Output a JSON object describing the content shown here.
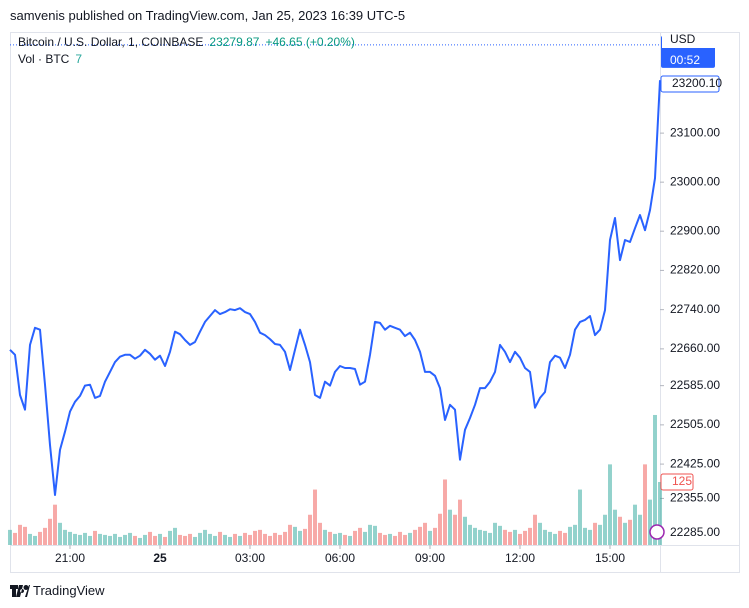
{
  "header": "samvenis published on TradingView.com, Jan 25, 2023 16:39 UTC-5",
  "footer": "TradingView",
  "chart_data": {
    "type": "line",
    "series": [
      {
        "name": "Bitcoin / U.S. Dollar, 1, COINBASE",
        "color": "#2962ff",
        "values": [
          22658,
          22648,
          22566,
          22536,
          22668,
          22703,
          22699,
          22587,
          22464,
          22362,
          22454,
          22491,
          22532,
          22552,
          22564,
          22585,
          22587,
          22560,
          22564,
          22593,
          22613,
          22633,
          22644,
          22648,
          22648,
          22640,
          22646,
          22658,
          22650,
          22638,
          22646,
          22625,
          22654,
          22695,
          22690,
          22678,
          22668,
          22674,
          22695,
          22715,
          22727,
          22739,
          22731,
          22735,
          22741,
          22739,
          22743,
          22735,
          22731,
          22715,
          22693,
          22688,
          22680,
          22670,
          22668,
          22654,
          22617,
          22658,
          22699,
          22668,
          22633,
          22566,
          22560,
          22593,
          22585,
          22613,
          22625,
          22621,
          22621,
          22619,
          22587,
          22593,
          22648,
          22715,
          22713,
          22699,
          22707,
          22703,
          22699,
          22686,
          22693,
          22678,
          22654,
          22613,
          22613,
          22605,
          22580,
          22515,
          22546,
          22536,
          22434,
          22495,
          22519,
          22546,
          22580,
          22580,
          22593,
          22613,
          22668,
          22654,
          22633,
          22654,
          22642,
          22621,
          22613,
          22540,
          22560,
          22572,
          22633,
          22646,
          22642,
          22621,
          22648,
          22699,
          22715,
          22719,
          22727,
          22688,
          22699,
          22739,
          22882,
          22927,
          22841,
          22882,
          22878,
          22906,
          22933,
          22902,
          22943,
          23008,
          23208
        ]
      }
    ],
    "x": [
      1140,
      1150,
      1160,
      1170,
      1180,
      1190,
      1200,
      1210,
      1220,
      1230,
      1240,
      1250,
      1260,
      1270,
      1280,
      1290,
      1300,
      1310,
      1320,
      1330,
      1340,
      1350,
      1360,
      1370,
      1380,
      1390,
      1400,
      1410,
      1420,
      1430,
      1440,
      1450,
      1460,
      1470,
      1480,
      1490,
      1500,
      1510,
      1520,
      1530,
      1540,
      1550,
      1560,
      1570,
      1580,
      1590,
      1600,
      1610,
      1620,
      1630,
      1640,
      1650,
      1660,
      1670,
      1680,
      1690,
      1700,
      1710,
      1720,
      1730,
      1740,
      1750,
      1760,
      1770,
      1780,
      1790,
      1800,
      1810,
      1820,
      1830,
      1840,
      1850,
      1860,
      1870,
      1880,
      1890,
      1900,
      1910,
      1920,
      1930,
      1940,
      1950,
      1960,
      1970,
      1980,
      1990,
      2000,
      2010,
      2020,
      2030,
      2040,
      2050,
      2060,
      2070,
      2080,
      2090,
      2100,
      2110,
      2120,
      2130,
      2140,
      2150,
      2160,
      2170,
      2180,
      2190,
      2200,
      2210,
      2220,
      2230,
      2240,
      2250,
      2260,
      2270,
      2280,
      2290,
      2300,
      2310,
      2320,
      2330,
      2340,
      2350,
      2360,
      2370,
      2380,
      2390,
      2400,
      2410,
      2420,
      2430,
      2440
    ],
    "xlim": [
      1140,
      2440
    ],
    "xticks": [
      {
        "value": 1260,
        "label": "21:00"
      },
      {
        "value": 1440,
        "label": "25"
      },
      {
        "value": 1620,
        "label": "03:00"
      },
      {
        "value": 1800,
        "label": "06:00"
      },
      {
        "value": 1980,
        "label": "09:00"
      },
      {
        "value": 2160,
        "label": "12:00"
      },
      {
        "value": 2340,
        "label": "15:00"
      }
    ],
    "ylim": [
      22260,
      23294
    ],
    "yticks": [
      {
        "value": 22285,
        "label": "22285.00"
      },
      {
        "value": 22355,
        "label": "22355.00"
      },
      {
        "value": 22425,
        "label": "22425.00"
      },
      {
        "value": 22505,
        "label": "22505.00"
      },
      {
        "value": 22585,
        "label": "22585.00"
      },
      {
        "value": 22660,
        "label": "22660.00"
      },
      {
        "value": 22740,
        "label": "22740.00"
      },
      {
        "value": 22820,
        "label": "22820.00"
      },
      {
        "value": 22900,
        "label": "22900.00"
      },
      {
        "value": 23000,
        "label": "23000.00"
      },
      {
        "value": 23100,
        "label": "23100.00"
      }
    ],
    "y_axis_label": "USD",
    "last_price": {
      "value": 23279.87,
      "label": "23279.87"
    },
    "change": "+46.65 (+0.20%)",
    "countdown": "00:52",
    "price_label": {
      "value": 23200.1,
      "label": "23200.10"
    },
    "volume": {
      "name": "Vol · BTC",
      "current": "7",
      "up_color": "#26a69a",
      "down_color": "#ef5350",
      "ylim": [
        0,
        1006
      ],
      "values": [
        30,
        24,
        40,
        36,
        22,
        18,
        26,
        34,
        52,
        80,
        44,
        30,
        26,
        22,
        20,
        24,
        18,
        28,
        22,
        20,
        18,
        22,
        16,
        20,
        24,
        18,
        14,
        20,
        26,
        18,
        22,
        16,
        28,
        34,
        20,
        18,
        22,
        16,
        24,
        30,
        22,
        18,
        26,
        20,
        16,
        22,
        18,
        24,
        20,
        28,
        30,
        22,
        18,
        24,
        20,
        26,
        40,
        36,
        28,
        32,
        60,
        110,
        44,
        30,
        26,
        22,
        24,
        20,
        18,
        28,
        34,
        26,
        40,
        38,
        24,
        20,
        22,
        18,
        26,
        20,
        24,
        30,
        36,
        44,
        28,
        34,
        62,
        130,
        70,
        60,
        90,
        56,
        40,
        34,
        30,
        28,
        24,
        44,
        38,
        30,
        26,
        30,
        22,
        28,
        34,
        60,
        44,
        30,
        26,
        22,
        28,
        24,
        36,
        40,
        110,
        34,
        30,
        44,
        40,
        60,
        160,
        70,
        56,
        44,
        50,
        80,
        60,
        160,
        90,
        258,
        125
      ]
    }
  }
}
